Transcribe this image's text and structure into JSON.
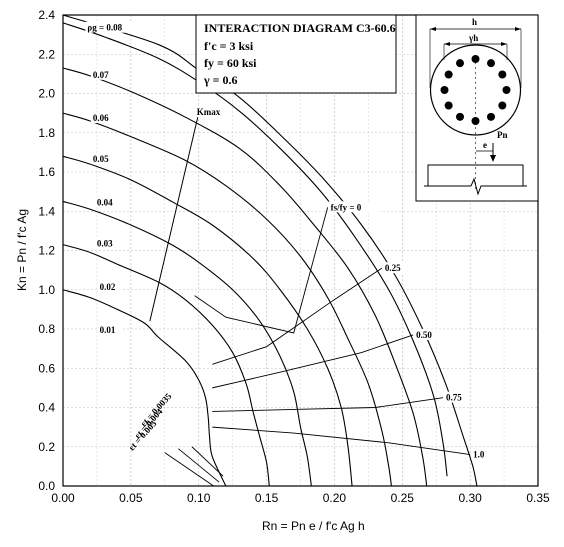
{
  "chart_data": {
    "type": "line",
    "title": "INTERACTION DIAGRAM C3-60.6",
    "params": [
      "f'c = 3 ksi",
      "fy = 60 ksi",
      "γ = 0.6"
    ],
    "xlabel": "Rn = Pn e / f'c Ag h",
    "ylabel": "Kn = Pn / f'c Ag",
    "xlim": [
      0,
      0.35
    ],
    "ylim": [
      0,
      2.4
    ],
    "xticks": [
      "0.00",
      "0.05",
      "0.10",
      "0.15",
      "0.20",
      "0.25",
      "0.30",
      "0.35"
    ],
    "yticks": [
      "0.0",
      "0.2",
      "0.4",
      "0.6",
      "0.8",
      "1.0",
      "1.2",
      "1.4",
      "1.6",
      "1.8",
      "2.0",
      "2.2",
      "2.4"
    ],
    "grid": true,
    "series": [
      {
        "name": "0.01",
        "points": [
          [
            0,
            1.0
          ],
          [
            0.02,
            0.96
          ],
          [
            0.04,
            0.9
          ],
          [
            0.06,
            0.83
          ],
          [
            0.07,
            0.76
          ],
          [
            0.09,
            0.64
          ],
          [
            0.1,
            0.54
          ],
          [
            0.105,
            0.45
          ],
          [
            0.107,
            0.35
          ],
          [
            0.108,
            0.25
          ],
          [
            0.11,
            0.15
          ],
          [
            0.12,
            0.0
          ]
        ]
      },
      {
        "name": "0.02",
        "points": [
          [
            0,
            1.23
          ],
          [
            0.02,
            1.19
          ],
          [
            0.04,
            1.13
          ],
          [
            0.07,
            1.04
          ],
          [
            0.09,
            0.95
          ],
          [
            0.11,
            0.82
          ],
          [
            0.125,
            0.68
          ],
          [
            0.135,
            0.52
          ],
          [
            0.14,
            0.38
          ],
          [
            0.145,
            0.25
          ],
          [
            0.15,
            0.12
          ],
          [
            0.152,
            0.0
          ]
        ]
      },
      {
        "name": "0.03",
        "points": [
          [
            0,
            1.45
          ],
          [
            0.02,
            1.41
          ],
          [
            0.05,
            1.33
          ],
          [
            0.08,
            1.23
          ],
          [
            0.1,
            1.14
          ],
          [
            0.125,
            1.0
          ],
          [
            0.145,
            0.84
          ],
          [
            0.16,
            0.66
          ],
          [
            0.17,
            0.48
          ],
          [
            0.175,
            0.3
          ],
          [
            0.18,
            0.15
          ],
          [
            0.183,
            0.0
          ]
        ]
      },
      {
        "name": "0.04",
        "points": [
          [
            0,
            1.68
          ],
          [
            0.02,
            1.64
          ],
          [
            0.05,
            1.56
          ],
          [
            0.08,
            1.45
          ],
          [
            0.11,
            1.33
          ],
          [
            0.14,
            1.16
          ],
          [
            0.16,
            1.0
          ],
          [
            0.18,
            0.8
          ],
          [
            0.195,
            0.6
          ],
          [
            0.205,
            0.4
          ],
          [
            0.21,
            0.2
          ],
          [
            0.213,
            0.0
          ]
        ]
      },
      {
        "name": "0.05",
        "points": [
          [
            0,
            1.9
          ],
          [
            0.02,
            1.86
          ],
          [
            0.05,
            1.78
          ],
          [
            0.09,
            1.66
          ],
          [
            0.12,
            1.53
          ],
          [
            0.15,
            1.36
          ],
          [
            0.175,
            1.17
          ],
          [
            0.195,
            0.96
          ],
          [
            0.21,
            0.75
          ],
          [
            0.225,
            0.52
          ],
          [
            0.235,
            0.28
          ],
          [
            0.24,
            0.1
          ],
          [
            0.242,
            0.0
          ]
        ]
      },
      {
        "name": "0.06",
        "points": [
          [
            0,
            2.13
          ],
          [
            0.02,
            2.09
          ],
          [
            0.05,
            2.01
          ],
          [
            0.09,
            1.88
          ],
          [
            0.13,
            1.72
          ],
          [
            0.16,
            1.53
          ],
          [
            0.185,
            1.33
          ],
          [
            0.21,
            1.11
          ],
          [
            0.23,
            0.87
          ],
          [
            0.245,
            0.62
          ],
          [
            0.258,
            0.37
          ],
          [
            0.265,
            0.15
          ],
          [
            0.268,
            0.0
          ]
        ]
      },
      {
        "name": "0.07",
        "points": [
          [
            0,
            2.36
          ],
          [
            0.03,
            2.29
          ],
          [
            0.07,
            2.18
          ],
          [
            0.1,
            2.06
          ],
          [
            0.13,
            1.91
          ],
          [
            0.16,
            1.72
          ],
          [
            0.19,
            1.5
          ],
          [
            0.215,
            1.27
          ],
          [
            0.24,
            1.0
          ],
          [
            0.258,
            0.74
          ],
          [
            0.273,
            0.46
          ],
          [
            0.28,
            0.22
          ],
          [
            0.283,
            0.05
          ]
        ]
      },
      {
        "name": "0.08",
        "points": [
          [
            0,
            2.4
          ],
          [
            0.07,
            2.25
          ],
          [
            0.1,
            2.12
          ],
          [
            0.13,
            1.98
          ],
          [
            0.16,
            1.79
          ],
          [
            0.19,
            1.58
          ],
          [
            0.22,
            1.33
          ],
          [
            0.245,
            1.07
          ],
          [
            0.265,
            0.8
          ],
          [
            0.282,
            0.52
          ],
          [
            0.295,
            0.25
          ],
          [
            0.302,
            0.1
          ],
          [
            0.305,
            0.0
          ]
        ]
      }
    ],
    "curve_labels": [
      {
        "text": "ρg = 0.08",
        "x": 0.018,
        "y": 2.32
      },
      {
        "text": "0.07",
        "x": 0.022,
        "y": 2.08
      },
      {
        "text": "0.06",
        "x": 0.022,
        "y": 1.86
      },
      {
        "text": "0.05",
        "x": 0.022,
        "y": 1.65
      },
      {
        "text": "0.04",
        "x": 0.025,
        "y": 1.43
      },
      {
        "text": "0.03",
        "x": 0.025,
        "y": 1.22
      },
      {
        "text": "0.02",
        "x": 0.027,
        "y": 1.0
      },
      {
        "text": "0.01",
        "x": 0.027,
        "y": 0.78
      }
    ],
    "fs_fy_lines": [
      {
        "label": "fs/fy = 0",
        "points": [
          [
            0.097,
            0.97
          ],
          [
            0.12,
            0.86
          ],
          [
            0.17,
            0.78
          ],
          [
            0.195,
            1.42
          ]
        ],
        "label_x": 0.195,
        "label_y": 1.42
      },
      {
        "label": "0.25",
        "points": [
          [
            0.11,
            0.62
          ],
          [
            0.15,
            0.71
          ],
          [
            0.2,
            0.95
          ],
          [
            0.235,
            1.11
          ]
        ],
        "label_x": 0.235,
        "label_y": 1.11
      },
      {
        "label": "0.50",
        "points": [
          [
            0.11,
            0.5
          ],
          [
            0.16,
            0.58
          ],
          [
            0.22,
            0.68
          ],
          [
            0.258,
            0.77
          ]
        ],
        "label_x": 0.258,
        "label_y": 0.77
      },
      {
        "label": "0.75",
        "points": [
          [
            0.11,
            0.38
          ],
          [
            0.17,
            0.39
          ],
          [
            0.23,
            0.4
          ],
          [
            0.28,
            0.45
          ]
        ],
        "label_x": 0.28,
        "label_y": 0.45
      },
      {
        "label": "1.0",
        "points": [
          [
            0.11,
            0.3
          ],
          [
            0.17,
            0.27
          ],
          [
            0.24,
            0.22
          ],
          [
            0.3,
            0.16
          ]
        ],
        "label_x": 0.3,
        "label_y": 0.16
      }
    ],
    "kmax_line": {
      "label": "Kmax",
      "points": [
        [
          0.064,
          0.84
        ],
        [
          0.1,
          1.9
        ]
      ]
    },
    "strain_lines": [
      {
        "label": "εt = 0.0035",
        "points": [
          [
            0.095,
            0.2
          ],
          [
            0.118,
            0.05
          ]
        ]
      },
      {
        "label": "εt = 0.004",
        "points": [
          [
            0.085,
            0.19
          ],
          [
            0.115,
            0.02
          ]
        ]
      },
      {
        "label": "εt = 0.005",
        "points": [
          [
            0.075,
            0.17
          ],
          [
            0.111,
            0.0
          ]
        ]
      }
    ],
    "inset_labels": {
      "h": "h",
      "gamma_h": "γh",
      "Pn": "Pn",
      "e": "e"
    }
  }
}
